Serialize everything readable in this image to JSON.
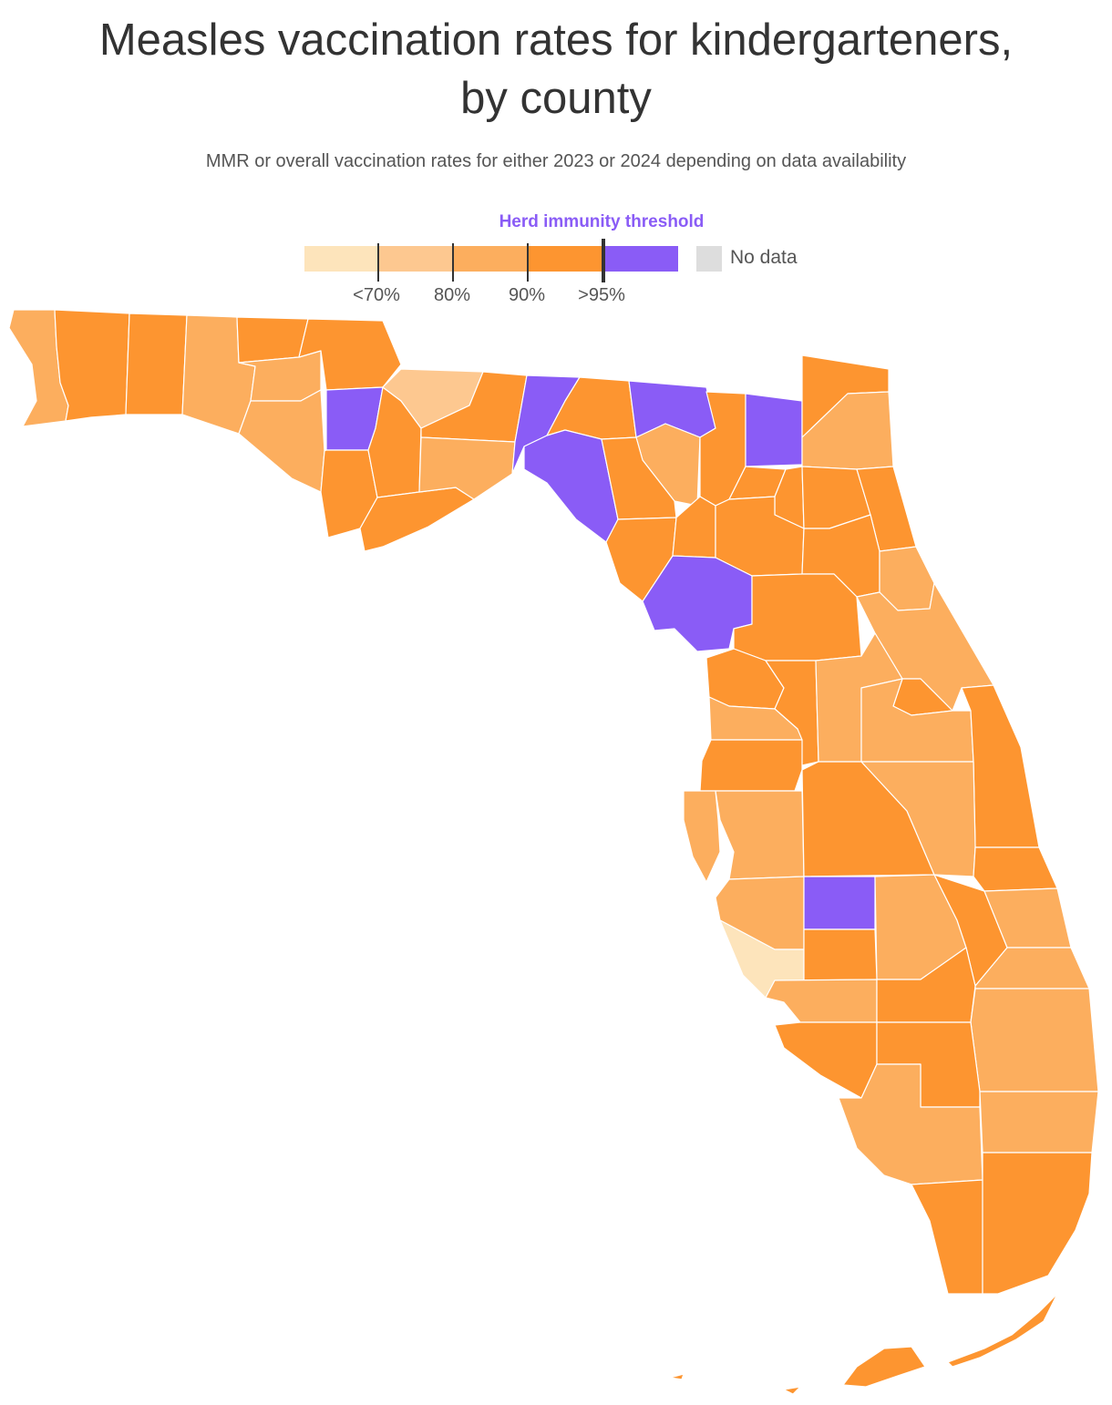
{
  "title_line1": "Measles vaccination rates for kindergarteners,",
  "title_line2": "by county",
  "subtitle": "MMR or overall vaccination rates for either 2023 or 2024 depending on data availability",
  "legend": {
    "threshold_label": "Herd immunity threshold",
    "tick_labels": [
      "<70%",
      "80%",
      "90%",
      ">95%"
    ],
    "no_data_label": "No data",
    "colors": [
      "#fde4bb",
      "#fdc890",
      "#fcae5e",
      "#fd9530",
      "#8a5cf6"
    ],
    "no_data_color": "#dddddd",
    "threshold_color": "#8a5cf6"
  },
  "bins": {
    "lt70": "#fde4bb",
    "70_80": "#fdc890",
    "80_90": "#fcae5e",
    "90_95": "#fd9530",
    "gt95": "#8a5cf6"
  }
}
